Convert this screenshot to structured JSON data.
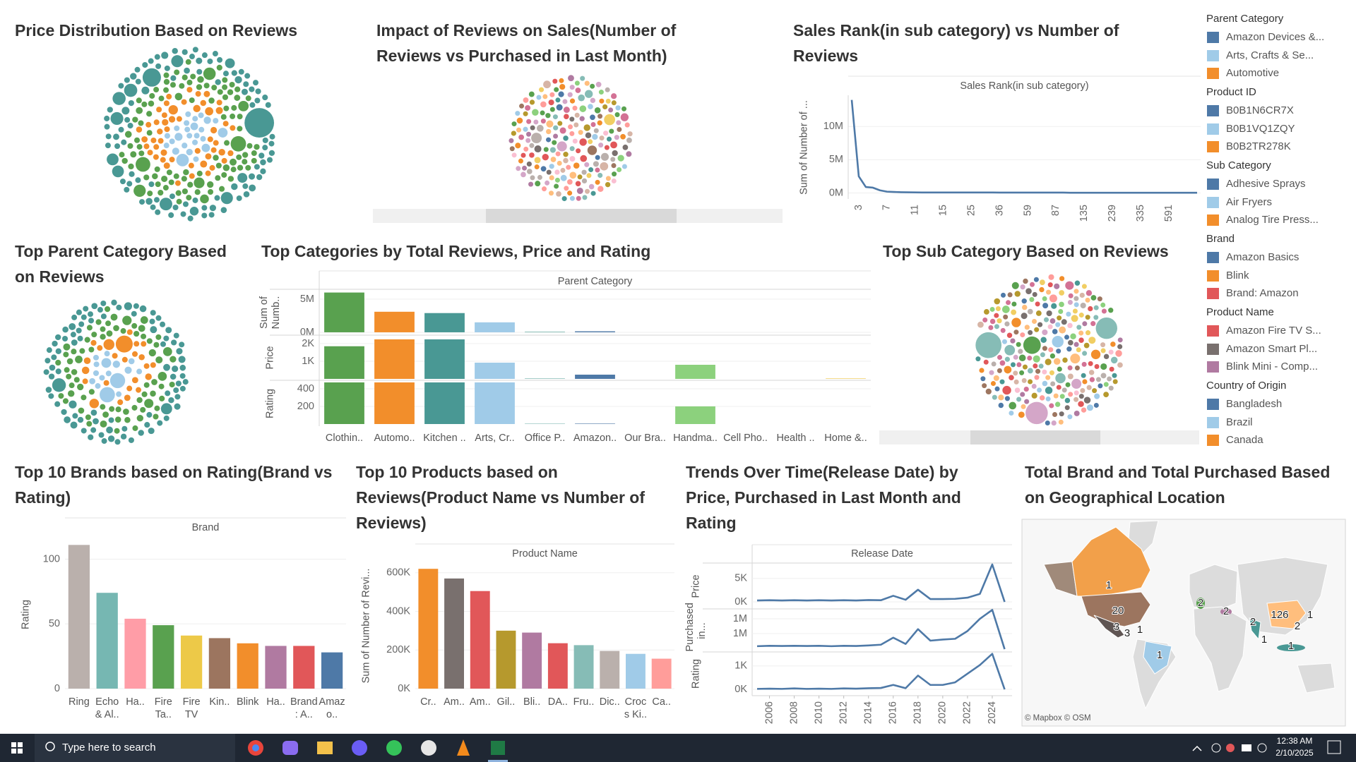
{
  "chart_data": [
    {
      "type": "bubble",
      "title": "Price Distribution Based on Reviews",
      "colors": [
        "#a0cbe8",
        "#f28e2b",
        "#59a14f",
        "#499894"
      ]
    },
    {
      "type": "bubble",
      "title": "Impact of Reviews on Sales(Number of Reviews vs Purchased in Last Month)",
      "colors": [
        "#4e79a7",
        "#a0cbe8",
        "#f28e2b",
        "#ffbe7d",
        "#59a14f",
        "#8cd17d",
        "#b6992d",
        "#f1ce63",
        "#499894",
        "#86bcb6",
        "#e15759",
        "#ff9d9a",
        "#79706e",
        "#bab0ac",
        "#d37295",
        "#fabfd2",
        "#b07aa1",
        "#d4a6c8",
        "#9d7660",
        "#d7b5a6"
      ]
    },
    {
      "type": "line",
      "title": "Sales Rank(in sub category) vs Number of Reviews",
      "header": "Sales Rank(in sub category)",
      "y_label": "Sum of Number of ...",
      "color": "#4e79a7",
      "categories": [
        null,
        "3",
        null,
        null,
        null,
        "7",
        null,
        null,
        null,
        "11",
        null,
        null,
        null,
        "15",
        null,
        null,
        null,
        "25",
        null,
        null,
        null,
        "36",
        null,
        null,
        null,
        "59",
        null,
        null,
        null,
        "87",
        null,
        null,
        null,
        "135",
        null,
        null,
        null,
        "239",
        null,
        null,
        null,
        "335",
        null,
        null,
        null,
        "591",
        null,
        null,
        null,
        null
      ],
      "values": [
        14000000,
        2500000,
        900000,
        800000,
        400000,
        200000,
        150000,
        120000,
        100000,
        90000,
        80000,
        80000,
        80000,
        80000,
        80000,
        80000,
        80000,
        80000,
        80000,
        80000,
        80000,
        60000,
        60000,
        60000,
        60000,
        60000,
        60000,
        60000,
        60000,
        60000,
        60000,
        40000,
        40000,
        40000,
        40000,
        40000,
        40000,
        40000,
        40000,
        40000,
        40000,
        30000,
        30000,
        30000,
        30000,
        30000,
        30000,
        30000,
        30000,
        30000
      ],
      "ylim": [
        -900000,
        14700000
      ],
      "yticks": [
        {
          "value": 0,
          "label": "0M"
        },
        {
          "value": 5000000,
          "label": "5M"
        },
        {
          "value": 10000000,
          "label": "10M"
        }
      ]
    },
    {
      "type": "bubble",
      "title": "Top Parent Category Based on Reviews",
      "colors": [
        "#a0cbe8",
        "#f28e2b",
        "#59a14f",
        "#499894"
      ]
    },
    {
      "type": "bar",
      "title": "Top Categories by Total Reviews, Price and Rating",
      "header": "Parent Category",
      "categories": [
        "Clothin..",
        "Automo..",
        "Kitchen ..",
        "Arts, Cr..",
        "Office P..",
        "Amazon..",
        "Our Bra..",
        "Handma..",
        "Cell Pho..",
        "Health ..",
        "Home &.."
      ],
      "colors": [
        "#59a14f",
        "#f28e2b",
        "#499894",
        "#a0cbe8",
        "#86bcb6",
        "#4e79a7",
        "#bab0ac",
        "#8cd17d",
        "#ff9d9a",
        "#d4a6c8",
        "#f1ce63"
      ],
      "rows": [
        {
          "label": "Sum of Numb..",
          "values": [
            6000000,
            3100000,
            2900000,
            1500000,
            100000,
            150000,
            0,
            0,
            0,
            0,
            0
          ],
          "ylim": [
            -430000,
            6490000
          ],
          "yticks": [
            {
              "value": 0,
              "label": "0M"
            },
            {
              "value": 5000000,
              "label": "5M"
            }
          ]
        },
        {
          "label": "Price",
          "values": [
            1850,
            2240,
            2240,
            920,
            30,
            240,
            0,
            800,
            0,
            0,
            30
          ],
          "ylim": [
            -80,
            2480
          ],
          "yticks": [
            {
              "value": 1000,
              "label": "1K"
            },
            {
              "value": 2000,
              "label": "2K"
            }
          ]
        },
        {
          "label": "Rating",
          "values": [
            472,
            472,
            472,
            472,
            5,
            5,
            0,
            200,
            0,
            0,
            0
          ],
          "ylim": [
            -24,
            496
          ],
          "yticks": [
            200,
            400
          ]
        }
      ]
    },
    {
      "type": "bubble",
      "title": "Top Sub Category Based on Reviews",
      "colors": [
        "#4e79a7",
        "#a0cbe8",
        "#f28e2b",
        "#ffbe7d",
        "#59a14f",
        "#8cd17d",
        "#b6992d",
        "#f1ce63",
        "#499894",
        "#86bcb6",
        "#e15759",
        "#ff9d9a",
        "#79706e",
        "#bab0ac",
        "#d37295",
        "#fabfd2",
        "#b07aa1",
        "#d4a6c8",
        "#9d7660",
        "#d7b5a6"
      ]
    },
    {
      "type": "bar",
      "title": "Top 10 Brands based on Rating(Brand vs Rating)",
      "header": "Brand",
      "y_label": "Rating",
      "categories": [
        "Ring",
        "Echo & Al..",
        "Ha..",
        "Fire Ta..",
        "Fire TV",
        "Kin..",
        "Blink",
        "Ha..",
        "Brand: A..",
        "Amazo.."
      ],
      "values": [
        111,
        74,
        54,
        49,
        41,
        39,
        35,
        33,
        33,
        28
      ],
      "colors": [
        "#bab0ac",
        "#76b7b2",
        "#ff9da7",
        "#59a14f",
        "#edc948",
        "#9c755f",
        "#f28e2b",
        "#b07aa1",
        "#e15759",
        "#4e79a7"
      ],
      "ylim": [
        0,
        115
      ],
      "yticks": [
        0,
        50,
        100
      ]
    },
    {
      "type": "bar",
      "title": "Top 10 Products based on Reviews(Product Name vs Number of Reviews)",
      "header": "Product Name",
      "y_label": "Sum of Number of Revi...",
      "categories": [
        "Cr..",
        "Am..",
        "Am..",
        "Gil..",
        "Bli..",
        "DA..",
        "Fru..",
        "Dic..",
        "Crocs Ki..",
        "Ca.."
      ],
      "values": [
        620000,
        570000,
        505000,
        300000,
        290000,
        235000,
        225000,
        195000,
        180000,
        155000
      ],
      "colors": [
        "#f28e2b",
        "#79706e",
        "#e15759",
        "#b6992d",
        "#b07aa1",
        "#e15759",
        "#86bcb6",
        "#bab0ac",
        "#a0cbe8",
        "#ff9d9a"
      ],
      "ylim": [
        0,
        650000
      ],
      "yticks": [
        {
          "value": 0,
          "label": "0K"
        },
        {
          "value": 200000,
          "label": "200K"
        },
        {
          "value": 400000,
          "label": "400K"
        },
        {
          "value": 600000,
          "label": "600K"
        }
      ]
    },
    {
      "type": "line",
      "title": "Trends Over Time(Release Date) by Price, Purchased in Last Month and Rating",
      "header": "Release Date",
      "color": "#4e79a7",
      "x": [
        2005,
        2006,
        2007,
        2008,
        2009,
        2010,
        2011,
        2012,
        2013,
        2014,
        2015,
        2016,
        2017,
        2018,
        2019,
        2020,
        2021,
        2022,
        2023,
        2024,
        2025
      ],
      "xlim": [
        2004.6,
        2025.6
      ],
      "xticks": [
        2006,
        2008,
        2010,
        2012,
        2014,
        2016,
        2018,
        2020,
        2022,
        2024
      ],
      "rows": [
        {
          "label": "Price",
          "values": [
            300,
            350,
            300,
            350,
            300,
            350,
            300,
            350,
            300,
            400,
            350,
            1300,
            450,
            2600,
            600,
            600,
            650,
            900,
            1700,
            8000,
            0
          ],
          "ylim": [
            -1500,
            8300
          ],
          "yticks": [
            {
              "value": 0,
              "label": "0K"
            },
            {
              "value": 5000,
              "label": "5K"
            }
          ]
        },
        {
          "label": "Purchased in...",
          "values": [
            660000,
            670000,
            665000,
            670000,
            665000,
            670000,
            660000,
            670000,
            665000,
            680000,
            700000,
            890000,
            720000,
            1120000,
            810000,
            840000,
            860000,
            1070000,
            1400000,
            1640000,
            580000
          ],
          "ylim": [
            505000,
            1667000
          ],
          "yticks": [
            {
              "value": 1000000,
              "label": "1M"
            },
            {
              "value": 1400000,
              "label": "1M"
            }
          ]
        },
        {
          "label": "Rating",
          "values": [
            20,
            30,
            20,
            40,
            20,
            30,
            20,
            40,
            30,
            50,
            60,
            190,
            50,
            590,
            190,
            190,
            300,
            670,
            1040,
            1520,
            0
          ],
          "ylim": [
            -270,
            1600
          ],
          "yticks": [
            {
              "value": 0,
              "label": "0K"
            },
            {
              "value": 1000,
              "label": "1K"
            }
          ]
        }
      ]
    },
    {
      "type": "map",
      "title": "Total Brand and Total Purchased Based on Geographical Location",
      "values": [
        1,
        20,
        3,
        3,
        1,
        1,
        2,
        2,
        2,
        126,
        1,
        2,
        1,
        1
      ],
      "attribution": "© Mapbox © OSM"
    }
  ],
  "legend": [
    {
      "title": "Parent Category",
      "items": [
        {
          "name": "Amazon Devices &...",
          "color": "#4e79a7"
        },
        {
          "name": "Arts, Crafts & Se...",
          "color": "#a0cbe8"
        },
        {
          "name": "Automotive",
          "color": "#f28e2b"
        }
      ]
    },
    {
      "title": "Product ID",
      "items": [
        {
          "name": "B0B1N6CR7X",
          "color": "#4e79a7"
        },
        {
          "name": "B0B1VQ1ZQY",
          "color": "#a0cbe8"
        },
        {
          "name": "B0B2TR278K",
          "color": "#f28e2b"
        }
      ]
    },
    {
      "title": "Sub Category",
      "items": [
        {
          "name": "Adhesive Sprays",
          "color": "#4e79a7"
        },
        {
          "name": "Air Fryers",
          "color": "#a0cbe8"
        },
        {
          "name": "Analog Tire Press...",
          "color": "#f28e2b"
        }
      ]
    },
    {
      "title": "Brand",
      "items": [
        {
          "name": "Amazon Basics",
          "color": "#4e79a7"
        },
        {
          "name": "Blink",
          "color": "#f28e2b"
        },
        {
          "name": "Brand: Amazon",
          "color": "#e15759"
        }
      ]
    },
    {
      "title": "Product Name",
      "items": [
        {
          "name": "Amazon Fire TV S...",
          "color": "#e15759"
        },
        {
          "name": "Amazon Smart Pl...",
          "color": "#79706e"
        },
        {
          "name": "Blink Mini - Comp...",
          "color": "#b07aa1"
        }
      ]
    },
    {
      "title": "Country of Origin",
      "items": [
        {
          "name": "Bangladesh",
          "color": "#4e79a7"
        },
        {
          "name": "Brazil",
          "color": "#a0cbe8"
        },
        {
          "name": "Canada",
          "color": "#f28e2b"
        }
      ]
    }
  ],
  "taskbar": {
    "search": "Type here to search",
    "time": "12:38 AM",
    "date": "2/10/2025"
  }
}
